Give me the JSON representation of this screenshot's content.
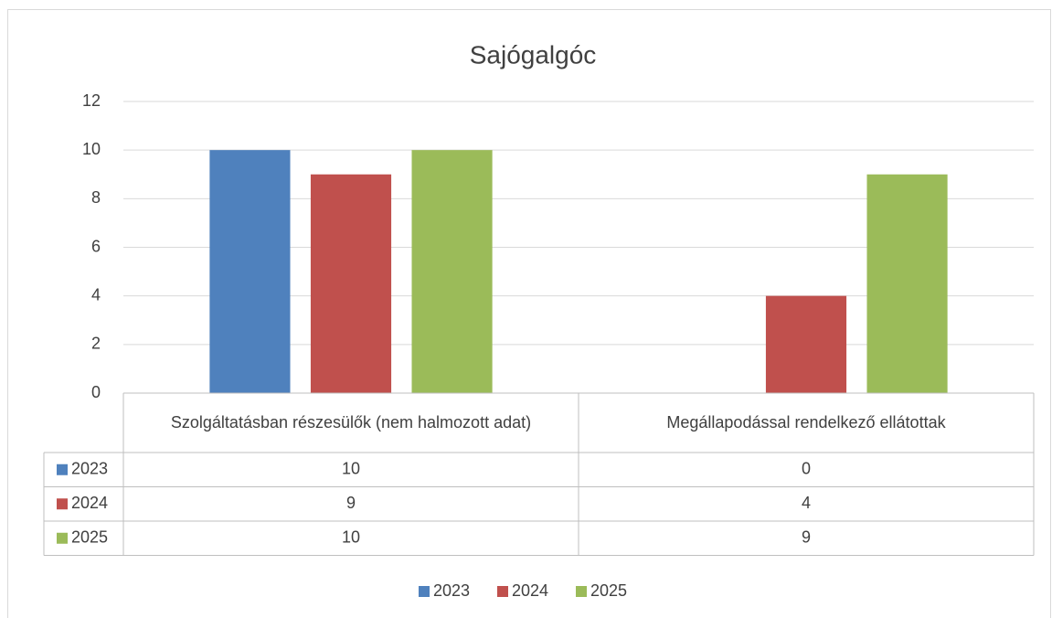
{
  "chart_data": {
    "type": "bar",
    "title": "Sajógalgóc",
    "categories": [
      "Szolgáltatásban részesülők (nem halmozott adat)",
      "Megállapodással rendelkező ellátottak"
    ],
    "series": [
      {
        "name": "2023",
        "color": "#4f81bd",
        "values": [
          10,
          0
        ]
      },
      {
        "name": "2024",
        "color": "#c0504d",
        "values": [
          9,
          4
        ]
      },
      {
        "name": "2025",
        "color": "#9bbb59",
        "values": [
          10,
          9
        ]
      }
    ],
    "ylim": [
      0,
      12
    ],
    "yticks": [
      0,
      2,
      4,
      6,
      8,
      10,
      12
    ],
    "grid": true,
    "data_table": true,
    "legend": "bottom"
  }
}
